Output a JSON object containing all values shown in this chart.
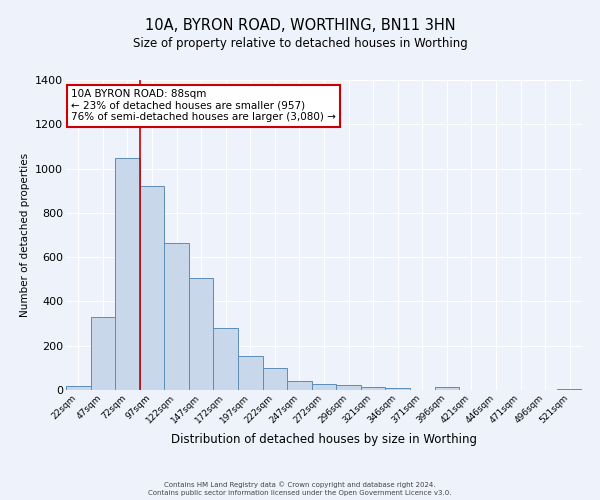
{
  "title1": "10A, BYRON ROAD, WORTHING, BN11 3HN",
  "title2": "Size of property relative to detached houses in Worthing",
  "xlabel": "Distribution of detached houses by size in Worthing",
  "ylabel": "Number of detached properties",
  "categories": [
    "22sqm",
    "47sqm",
    "72sqm",
    "97sqm",
    "122sqm",
    "147sqm",
    "172sqm",
    "197sqm",
    "222sqm",
    "247sqm",
    "272sqm",
    "296sqm",
    "321sqm",
    "346sqm",
    "371sqm",
    "396sqm",
    "421sqm",
    "446sqm",
    "471sqm",
    "496sqm",
    "521sqm"
  ],
  "values": [
    20,
    330,
    1050,
    920,
    665,
    505,
    280,
    155,
    100,
    42,
    25,
    22,
    15,
    8,
    0,
    12,
    0,
    0,
    0,
    0,
    5
  ],
  "bar_color": "#c8d8ea",
  "bar_edge_color": "#5b8db8",
  "bg_color": "#eef2fb",
  "grid_color": "#ffffff",
  "vline_color": "#cc0000",
  "annotation_text": "10A BYRON ROAD: 88sqm\n← 23% of detached houses are smaller (957)\n76% of semi-detached houses are larger (3,080) →",
  "annotation_box_color": "#ffffff",
  "annotation_box_edge": "#cc0000",
  "ylim": [
    0,
    1400
  ],
  "yticks": [
    0,
    200,
    400,
    600,
    800,
    1000,
    1200,
    1400
  ],
  "footer1": "Contains HM Land Registry data © Crown copyright and database right 2024.",
  "footer2": "Contains public sector information licensed under the Open Government Licence v3.0."
}
